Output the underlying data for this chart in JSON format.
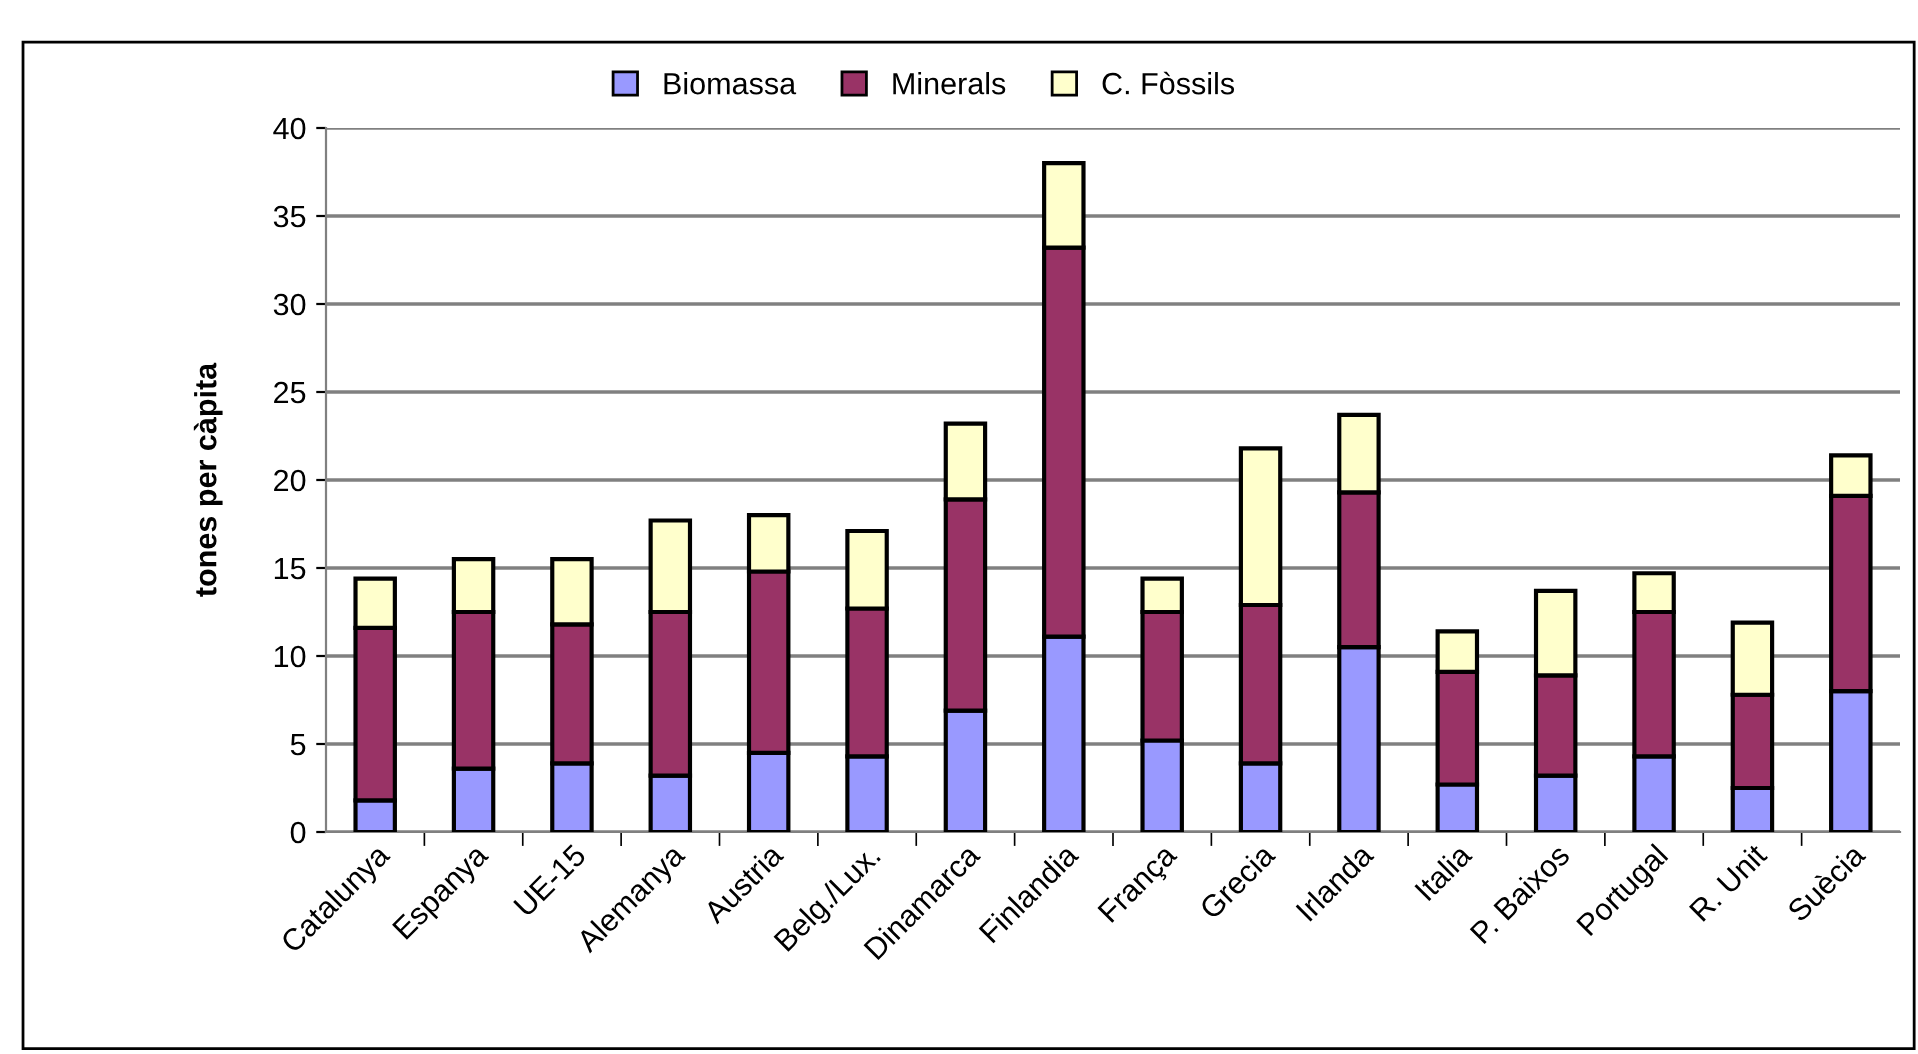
{
  "chart_data": {
    "type": "bar",
    "stacked": true,
    "ylabel": "tones per càpita",
    "categories": [
      "Catalunya",
      "Espanya",
      "UE-15",
      "Alemanya",
      "Austria",
      "Belg./Lux.",
      "Dinamarca",
      "Finlandia",
      "França",
      "Grecia",
      "Irlanda",
      "Italia",
      "P. Baixos",
      "Portugal",
      "R. Unit",
      "Suècia"
    ],
    "series": [
      {
        "name": "Biomassa",
        "color": "#9999ff",
        "values": [
          1.8,
          3.6,
          3.9,
          3.2,
          4.5,
          4.3,
          6.9,
          11.1,
          5.2,
          3.9,
          10.5,
          2.7,
          3.2,
          4.3,
          2.5,
          8.0
        ]
      },
      {
        "name": "Minerals",
        "color": "#993366",
        "values": [
          9.8,
          8.9,
          7.9,
          9.3,
          10.3,
          8.4,
          12.0,
          22.1,
          7.3,
          9.0,
          8.8,
          6.4,
          5.7,
          8.2,
          5.3,
          11.1
        ]
      },
      {
        "name": "C. Fòssils",
        "color": "#ffffcc",
        "values": [
          2.8,
          3.0,
          3.7,
          5.2,
          3.2,
          4.4,
          4.3,
          4.8,
          1.9,
          8.9,
          4.4,
          2.3,
          4.8,
          2.2,
          4.1,
          2.3
        ]
      }
    ],
    "ylim": [
      0,
      40
    ],
    "yticks": [
      0,
      5,
      10,
      15,
      20,
      25,
      30,
      35,
      40
    ],
    "grid": "y",
    "legend": "top"
  }
}
